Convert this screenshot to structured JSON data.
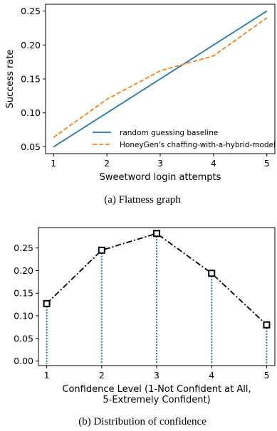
{
  "chart_data": [
    {
      "type": "line",
      "x": [
        1,
        2,
        3,
        4,
        5
      ],
      "series": [
        {
          "name": "random guessing baseline",
          "values": [
            0.05,
            0.1,
            0.15,
            0.2,
            0.25
          ],
          "color": "#1f77b4",
          "style": "solid"
        },
        {
          "name": "HoneyGen's chaffing-with-a-hybrid-model",
          "values": [
            0.064,
            0.12,
            0.162,
            0.184,
            0.24
          ],
          "color": "#ff7f0e",
          "style": "dashed"
        }
      ],
      "xlabel": "Sweetword login attempts",
      "ylabel": "Success rate",
      "xticks": [
        "1",
        "2",
        "3",
        "4",
        "5"
      ],
      "yticks": [
        "0.05",
        "0.10",
        "0.15",
        "0.20",
        "0.25"
      ],
      "xlim": [
        0.85,
        5.15
      ],
      "ylim": [
        0.04,
        0.26
      ],
      "legend_position": "lower-right",
      "grid": false,
      "caption": "(a)  Flatness graph"
    },
    {
      "type": "line",
      "x": [
        1,
        2,
        3,
        4,
        5
      ],
      "series": [
        {
          "values": [
            0.127,
            0.245,
            0.282,
            0.194,
            0.08
          ],
          "color": "#000000",
          "style": "dash-dot",
          "marker": "square",
          "stems": true,
          "stem_color": "#1f77b4"
        }
      ],
      "xlabel": "Confidence Level (1-Not Confident at All,\n5-Extremely Confident)",
      "xlabel_lines": [
        "Confidence Level (1-Not Confident at All,",
        "5-Extremely Confident)"
      ],
      "ylabel": "",
      "xticks": [
        "1",
        "2",
        "3",
        "4",
        "5"
      ],
      "yticks": [
        "0.00",
        "0.05",
        "0.10",
        "0.15",
        "0.20",
        "0.25"
      ],
      "xlim": [
        0.85,
        5.15
      ],
      "ylim": [
        -0.01,
        0.295
      ],
      "grid": false,
      "caption": "(b)  Distribution of confidence"
    }
  ]
}
